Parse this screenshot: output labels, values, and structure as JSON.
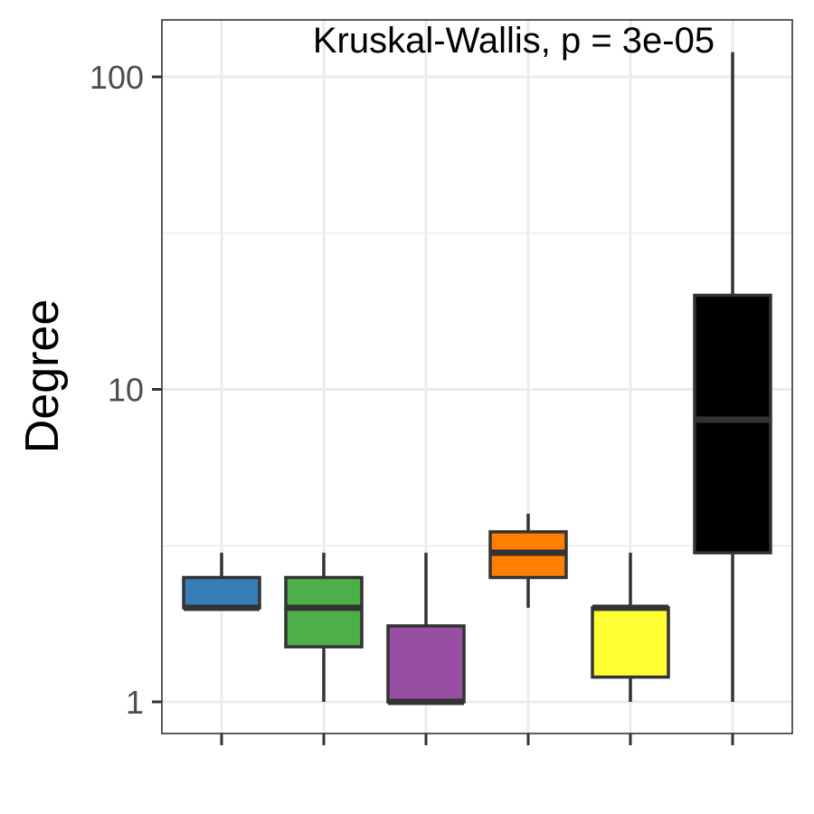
{
  "chart_data": {
    "type": "box",
    "title": "",
    "xlabel": "",
    "ylabel": "Degree",
    "y_scale": "log10",
    "ylim": [
      0.9,
      140
    ],
    "y_ticks": [
      {
        "value": 1,
        "label": "1"
      },
      {
        "value": 10,
        "label": "10"
      },
      {
        "value": 100,
        "label": "100"
      }
    ],
    "y_minor_gridlines": [
      3.16,
      31.6
    ],
    "grid": true,
    "annotation": "Kruskal-Wallis, p = 3e-05",
    "boxes": [
      {
        "color": "#377EB8",
        "min": 2,
        "q1": 2,
        "median": 2,
        "q3": 2.5,
        "max": 3
      },
      {
        "color": "#4DAF4A",
        "min": 1,
        "q1": 1.5,
        "median": 2,
        "q3": 2.5,
        "max": 3
      },
      {
        "color": "#984EA3",
        "min": 1,
        "q1": 1,
        "median": 1,
        "q3": 1.75,
        "max": 3
      },
      {
        "color": "#FF7F00",
        "min": 2,
        "q1": 2.5,
        "median": 3,
        "q3": 3.5,
        "max": 4
      },
      {
        "color": "#FFFF33",
        "min": 1,
        "q1": 1.2,
        "median": 2,
        "q3": 2,
        "max": 3
      },
      {
        "color": "#000000",
        "min": 1,
        "q1": 3,
        "median": 8,
        "q3": 20,
        "max": 120
      }
    ]
  }
}
